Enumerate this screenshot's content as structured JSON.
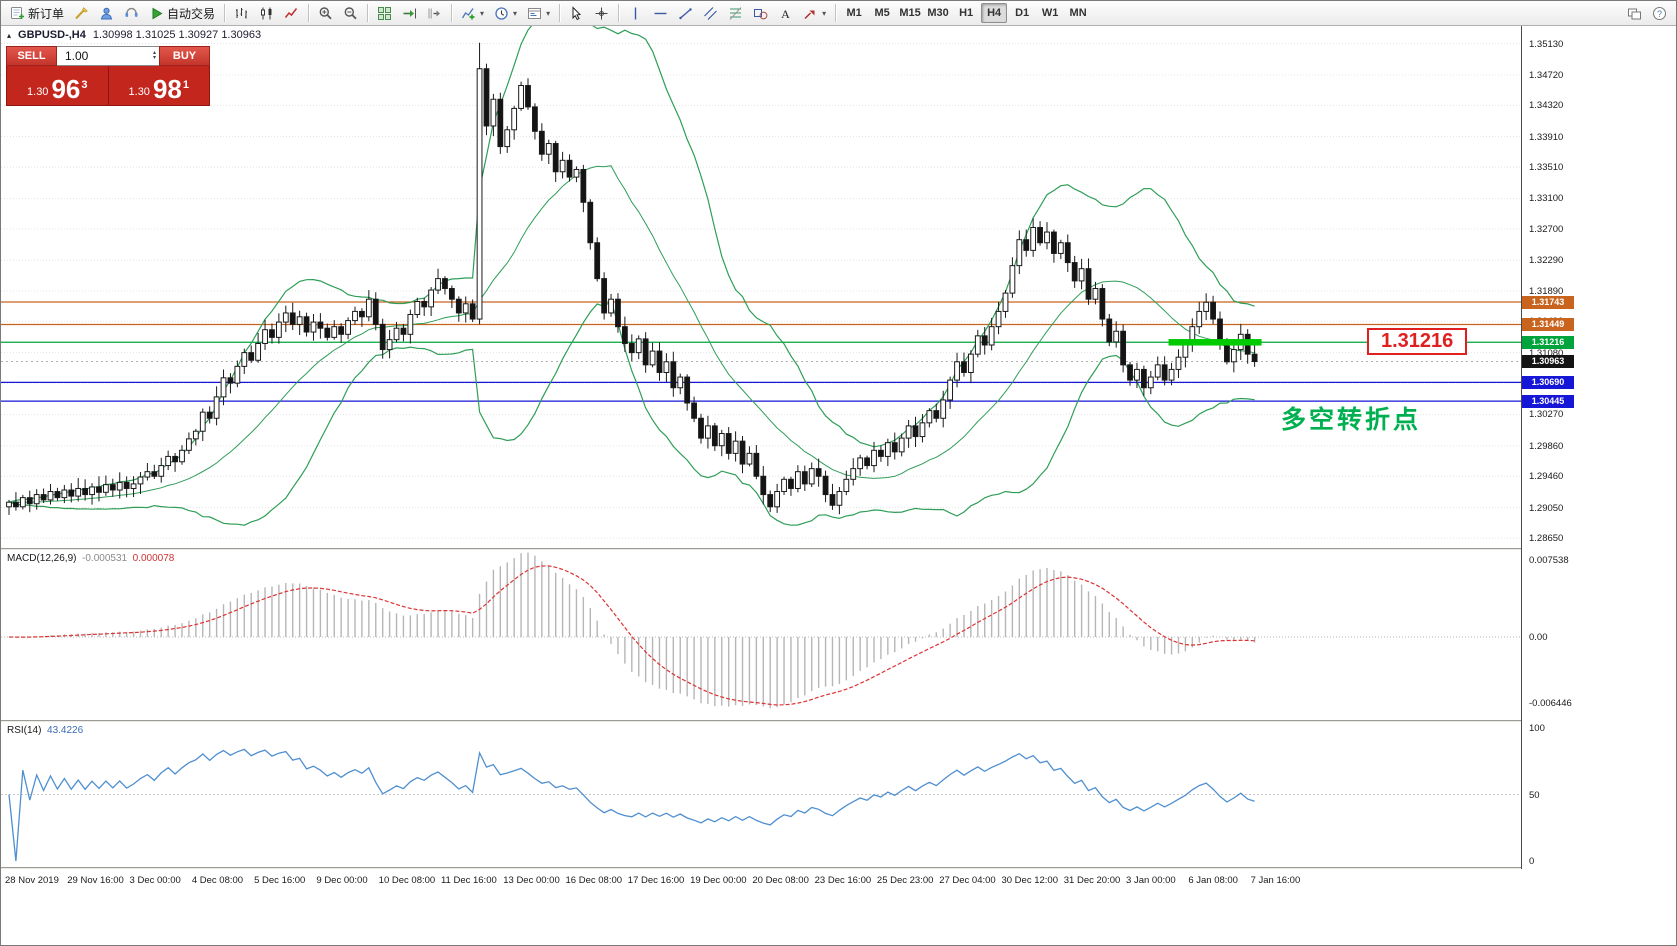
{
  "toolbar": {
    "buttons": [
      {
        "name": "new-order-button",
        "icon": "new-order-icon",
        "label": "新订单"
      },
      {
        "name": "chart-wizard-button",
        "icon": "chart-wizard-icon"
      },
      {
        "name": "profile-button",
        "icon": "profile-icon"
      },
      {
        "name": "market-button",
        "icon": "market-icon"
      },
      {
        "name": "autotrade-button",
        "icon": "autotrade-icon",
        "label": "自动交易"
      },
      {
        "sep": true
      },
      {
        "name": "bars-button",
        "icon": "bars-icon"
      },
      {
        "name": "candles-button",
        "icon": "candles-icon"
      },
      {
        "name": "line-chart-button",
        "icon": "line-chart-icon"
      },
      {
        "sep": true
      },
      {
        "name": "zoom-in-button",
        "icon": "zoom-in-icon"
      },
      {
        "name": "zoom-out-button",
        "icon": "zoom-out-icon"
      },
      {
        "sep": true
      },
      {
        "name": "tile-windows-button",
        "icon": "tile-windows-icon"
      },
      {
        "name": "auto-scroll-button",
        "icon": "auto-scroll-icon"
      },
      {
        "name": "chart-shift-button",
        "icon": "chart-shift-icon"
      },
      {
        "sep": true
      },
      {
        "name": "indicators-button",
        "icon": "indicators-icon",
        "caret": true
      },
      {
        "name": "periods-button",
        "icon": "periods-icon",
        "caret": true
      },
      {
        "name": "templates-button",
        "icon": "templates-icon",
        "caret": true
      },
      {
        "sep": true
      },
      {
        "name": "cursor-button",
        "icon": "cursor-icon"
      },
      {
        "name": "crosshair-button",
        "icon": "crosshair-icon"
      },
      {
        "sep": true
      },
      {
        "name": "vertical-line-button",
        "icon": "vertical-line-icon"
      },
      {
        "name": "horizontal-line-button",
        "icon": "horizontal-line-icon"
      },
      {
        "name": "trendline-button",
        "icon": "trendline-icon"
      },
      {
        "name": "channel-button",
        "icon": "channel-icon"
      },
      {
        "name": "fibonacci-button",
        "icon": "fibonacci-icon"
      },
      {
        "name": "shapes-button",
        "icon": "shapes-icon"
      },
      {
        "name": "text-button",
        "icon": "text-icon"
      },
      {
        "name": "arrows-button",
        "icon": "arrows-icon",
        "caret": true
      },
      {
        "sep": true
      }
    ],
    "timeframes": [
      "M1",
      "M5",
      "M15",
      "M30",
      "H1",
      "H4",
      "D1",
      "W1",
      "MN"
    ],
    "active_timeframe": "H4",
    "right_icons": [
      "arrange-windows-icon",
      "help-icon"
    ]
  },
  "chart": {
    "symbol_period": "GBPUSD-,H4",
    "ohlc_line": "1.30998 1.31025 1.30927 1.30963"
  },
  "trade_panel": {
    "collapse_icon": "▴",
    "sell_label": "SELL",
    "buy_label": "BUY",
    "volume": "1.00",
    "spin_up": "▴",
    "spin_down": "▾",
    "sell_price_small": "1.30",
    "sell_price_big": "96",
    "sell_price_sup": "3",
    "buy_price_small": "1.30",
    "buy_price_big": "98",
    "buy_price_sup": "1"
  },
  "chart_data": {
    "type": "candlestick",
    "symbol": "GBPUSD-",
    "timeframe": "H4",
    "price_ticks": [
      "1.35130",
      "1.34720",
      "1.34320",
      "1.33910",
      "1.33510",
      "1.33100",
      "1.32700",
      "1.32290",
      "1.31890",
      "1.31490",
      "1.31080",
      "1.30680",
      "1.30270",
      "1.29860",
      "1.29460",
      "1.29050",
      "1.28650"
    ],
    "time_labels": [
      "28 Nov 2019",
      "29 Nov 16:00",
      "3 Dec 00:00",
      "4 Dec 08:00",
      "5 Dec 16:00",
      "9 Dec 00:00",
      "10 Dec 08:00",
      "11 Dec 16:00",
      "13 Dec 00:00",
      "16 Dec 08:00",
      "17 Dec 16:00",
      "19 Dec 00:00",
      "20 Dec 08:00",
      "23 Dec 16:00",
      "25 Dec 23:00",
      "27 Dec 04:00",
      "30 Dec 12:00",
      "31 Dec 20:00",
      "3 Jan 00:00",
      "6 Jan 08:00",
      "7 Jan 16:00"
    ],
    "closes": [
      1.2912,
      1.2906,
      1.2918,
      1.291,
      1.2922,
      1.2915,
      1.2926,
      1.2918,
      1.2928,
      1.292,
      1.293,
      1.2922,
      1.2932,
      1.2925,
      1.2935,
      1.2928,
      1.2938,
      1.293,
      1.2936,
      1.2945,
      1.2952,
      1.2946,
      1.296,
      1.2972,
      1.2965,
      1.298,
      1.2995,
      1.3005,
      1.303,
      1.3022,
      1.305,
      1.3075,
      1.3068,
      1.309,
      1.3108,
      1.3098,
      1.312,
      1.3138,
      1.3128,
      1.3148,
      1.316,
      1.3145,
      1.3155,
      1.3135,
      1.3148,
      1.314,
      1.3128,
      1.3142,
      1.3132,
      1.315,
      1.3162,
      1.3155,
      1.3178,
      1.3145,
      1.3112,
      1.3125,
      1.314,
      1.3132,
      1.3158,
      1.3175,
      1.3168,
      1.319,
      1.3205,
      1.3192,
      1.3178,
      1.316,
      1.3172,
      1.3152,
      1.348,
      1.3405,
      1.344,
      1.3378,
      1.34,
      1.3428,
      1.3458,
      1.343,
      1.3398,
      1.3368,
      1.3382,
      1.3345,
      1.336,
      1.3338,
      1.3348,
      1.3305,
      1.3252,
      1.3205,
      1.316,
      1.3178,
      1.3142,
      1.312,
      1.3108,
      1.3126,
      1.3092,
      1.311,
      1.3082,
      1.3096,
      1.3062,
      1.3076,
      1.3042,
      1.3022,
      1.2996,
      1.3012,
      1.2986,
      1.3002,
      1.2976,
      1.2992,
      1.2962,
      1.2976,
      1.2946,
      1.2922,
      1.2906,
      1.2926,
      1.2942,
      1.293,
      1.2952,
      1.2936,
      1.2956,
      1.2946,
      1.2922,
      1.2908,
      1.2926,
      1.2942,
      1.2956,
      1.297,
      1.296,
      1.298,
      1.2972,
      1.299,
      1.2978,
      1.2996,
      1.3012,
      1.2998,
      1.3016,
      1.3032,
      1.3022,
      1.3046,
      1.3072,
      1.3096,
      1.3082,
      1.3106,
      1.313,
      1.3118,
      1.3142,
      1.3162,
      1.3186,
      1.3222,
      1.3256,
      1.3242,
      1.3272,
      1.3252,
      1.3266,
      1.3238,
      1.3252,
      1.3226,
      1.3202,
      1.3218,
      1.3178,
      1.3192,
      1.3152,
      1.3122,
      1.3136,
      1.3092,
      1.3072,
      1.3086,
      1.3062,
      1.3076,
      1.3092,
      1.3072,
      1.3086,
      1.3102,
      1.3118,
      1.3142,
      1.3162,
      1.3174,
      1.3152,
      1.3122,
      1.3096,
      1.3112,
      1.3132,
      1.3106,
      1.30963
    ],
    "overrides": {
      "62": {
        "h": 1.3218
      },
      "68": {
        "o": 1.3152,
        "h": 1.3514,
        "l": 1.3145
      },
      "110": {
        "l": 1.2899
      },
      "119": {
        "l": 1.2902
      },
      "148": {
        "h": 1.3284
      }
    },
    "hlines": [
      {
        "price": 1.31743,
        "label": "1.31743",
        "color": "#c8641e"
      },
      {
        "price": 1.31449,
        "label": "1.31449",
        "color": "#c8641e"
      },
      {
        "price": 1.31216,
        "label": "1.31216",
        "color": "#00a43c"
      },
      {
        "price": 1.3069,
        "label": "1.30690",
        "color": "#1616d6"
      },
      {
        "price": 1.30445,
        "label": "1.30445",
        "color": "#1616d6"
      }
    ],
    "highlight_segment": {
      "price": 1.31216,
      "from_index": 168,
      "to_index": 180,
      "color": "#00ca00"
    },
    "current_price": {
      "value": 1.30963,
      "label": "1.30963",
      "bg": "#141414"
    },
    "bollinger": {
      "period": 20,
      "deviation": 2,
      "color": "#2e9e57"
    },
    "macd": {
      "name": "MACD(12,26,9)",
      "value_main": "-0.000531",
      "value_signal": "0.000078",
      "axis_labels": [
        "0.007538",
        "0.00",
        "-0.006446"
      ],
      "axis_values": [
        0.007538,
        0,
        -0.006446
      ],
      "hist_color": "#b6b6b6",
      "signal_color": "#dd3333"
    },
    "rsi": {
      "name": "RSI(14)",
      "value": "43.4226",
      "axis_labels": [
        "100",
        "50",
        "0"
      ],
      "axis_values": [
        100,
        50,
        0
      ],
      "line_color": "#4f8fd0"
    },
    "annotations": {
      "price_box": {
        "text": "1.31216",
        "color": "#e02020"
      },
      "turning_point": {
        "text": "多空转折点",
        "color": "#00b050"
      }
    },
    "candle_colors": {
      "up": "#ffffff",
      "down": "#141414",
      "outline": "#1a1a1a"
    }
  }
}
